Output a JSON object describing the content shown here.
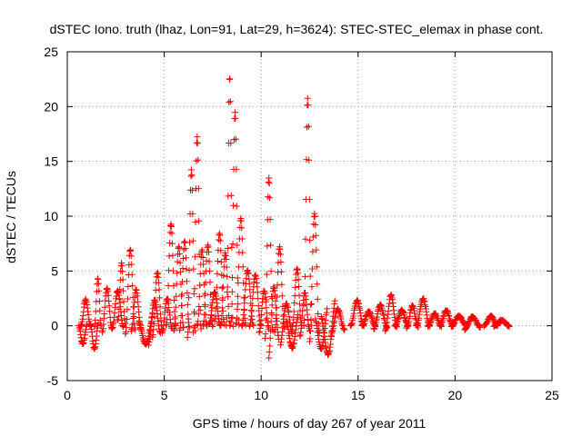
{
  "chart_data": {
    "type": "scatter",
    "title": "dSTEC Iono. truth (lhaz, Lon=91, Lat=29, h=3624): STEC-STEC_elemax in phase cont.",
    "xlabel": "GPS time / hours of day 267 of year 2011",
    "ylabel": "dSTEC  / TECUs",
    "xlim": [
      0,
      25
    ],
    "ylim": [
      -5,
      25
    ],
    "xticks": [
      0,
      5,
      10,
      15,
      20,
      25
    ],
    "yticks": [
      -5,
      0,
      5,
      10,
      15,
      20,
      25
    ],
    "grid": true,
    "marker": "+",
    "marker_color": "#ff0000",
    "series": [
      {
        "name": "dSTEC",
        "arcs": [
          {
            "t0": 0.6,
            "t1": 1.0,
            "min": -1.7,
            "max": 0.0
          },
          {
            "t0": 0.7,
            "t1": 1.2,
            "min": 0.0,
            "max": 2.4
          },
          {
            "t0": 1.2,
            "t1": 1.6,
            "min": -2.1,
            "max": 0.3
          },
          {
            "t0": 1.4,
            "t1": 1.75,
            "min": 0.0,
            "max": 4.3
          },
          {
            "t0": 1.8,
            "t1": 2.3,
            "min": -0.6,
            "max": 3.4
          },
          {
            "t0": 2.3,
            "t1": 2.9,
            "min": -0.3,
            "max": 3.2
          },
          {
            "t0": 2.6,
            "t1": 3.0,
            "min": 0.5,
            "max": 5.7
          },
          {
            "t0": 3.0,
            "t1": 3.5,
            "min": -0.8,
            "max": 7.0
          },
          {
            "t0": 3.3,
            "t1": 3.8,
            "min": -0.5,
            "max": 3.3
          },
          {
            "t0": 3.7,
            "t1": 4.4,
            "min": -1.7,
            "max": 1.0
          },
          {
            "t0": 4.2,
            "t1": 4.8,
            "min": -1.8,
            "max": 2.3
          },
          {
            "t0": 4.4,
            "t1": 4.9,
            "min": -1.0,
            "max": 4.9
          },
          {
            "t0": 4.9,
            "t1": 5.4,
            "min": -0.6,
            "max": 2.5
          },
          {
            "t0": 5.1,
            "t1": 5.6,
            "min": 0.0,
            "max": 9.3
          },
          {
            "t0": 5.5,
            "t1": 6.0,
            "min": -0.5,
            "max": 7.2
          },
          {
            "t0": 5.8,
            "t1": 6.3,
            "min": -0.4,
            "max": 7.7
          },
          {
            "t0": 6.2,
            "t1": 6.6,
            "min": -1.0,
            "max": 14.2
          },
          {
            "t0": 6.5,
            "t1": 6.9,
            "min": -0.6,
            "max": 17.3
          },
          {
            "t0": 6.7,
            "t1": 7.2,
            "min": 0.0,
            "max": 6.9
          },
          {
            "t0": 7.0,
            "t1": 7.5,
            "min": 0.0,
            "max": 7.3
          },
          {
            "t0": 7.3,
            "t1": 7.9,
            "min": 0.2,
            "max": 3.1
          },
          {
            "t0": 7.6,
            "t1": 8.1,
            "min": 0.5,
            "max": 8.5
          },
          {
            "t0": 7.9,
            "t1": 8.4,
            "min": 0.0,
            "max": 6.6
          },
          {
            "t0": 8.2,
            "t1": 8.55,
            "min": 0.0,
            "max": 22.8
          },
          {
            "t0": 8.45,
            "t1": 8.85,
            "min": 0.3,
            "max": 19.5
          },
          {
            "t0": 8.7,
            "t1": 9.2,
            "min": 0.2,
            "max": 9.8
          },
          {
            "t0": 9.0,
            "t1": 9.6,
            "min": 0.0,
            "max": 5.0
          },
          {
            "t0": 9.4,
            "t1": 10.0,
            "min": 0.0,
            "max": 4.6
          },
          {
            "t0": 9.9,
            "t1": 10.4,
            "min": -0.6,
            "max": 3.2
          },
          {
            "t0": 10.2,
            "t1": 10.6,
            "min": -1.2,
            "max": 13.5
          },
          {
            "t0": 10.4,
            "t1": 10.9,
            "min": -2.9,
            "max": 3.5
          },
          {
            "t0": 10.7,
            "t1": 11.2,
            "min": -0.5,
            "max": 7.2
          },
          {
            "t0": 11.0,
            "t1": 11.6,
            "min": -1.7,
            "max": 2.0
          },
          {
            "t0": 11.3,
            "t1": 11.9,
            "min": -2.0,
            "max": 1.0
          },
          {
            "t0": 11.6,
            "t1": 12.1,
            "min": 0.0,
            "max": 5.2
          },
          {
            "t0": 12.0,
            "t1": 12.5,
            "min": -1.0,
            "max": 3.0
          },
          {
            "t0": 12.2,
            "t1": 12.6,
            "min": 0.0,
            "max": 20.8
          },
          {
            "t0": 12.5,
            "t1": 13.0,
            "min": -1.5,
            "max": 10.2
          },
          {
            "t0": 12.8,
            "t1": 13.4,
            "min": -2.1,
            "max": 1.5
          },
          {
            "t0": 13.1,
            "t1": 13.8,
            "min": -2.6,
            "max": 2.3
          },
          {
            "t0": 13.6,
            "t1": 14.3,
            "min": -1.0,
            "max": 1.5
          },
          {
            "t0": 14.6,
            "t1": 15.3,
            "min": 0.0,
            "max": 2.3
          },
          {
            "t0": 15.2,
            "t1": 15.9,
            "min": 0.0,
            "max": 1.3
          },
          {
            "t0": 15.8,
            "t1": 16.5,
            "min": -0.3,
            "max": 1.9
          },
          {
            "t0": 16.4,
            "t1": 17.0,
            "min": -0.4,
            "max": 2.8
          },
          {
            "t0": 16.9,
            "t1": 17.6,
            "min": 0.0,
            "max": 1.4
          },
          {
            "t0": 17.5,
            "t1": 18.1,
            "min": -0.2,
            "max": 1.8
          },
          {
            "t0": 18.0,
            "t1": 18.7,
            "min": 0.0,
            "max": 2.5
          },
          {
            "t0": 18.6,
            "t1": 19.3,
            "min": 0.0,
            "max": 1.1
          },
          {
            "t0": 19.2,
            "t1": 19.9,
            "min": 0.0,
            "max": 1.4
          },
          {
            "t0": 19.8,
            "t1": 20.6,
            "min": 0.0,
            "max": 0.9
          },
          {
            "t0": 20.5,
            "t1": 21.3,
            "min": -0.3,
            "max": 0.8
          },
          {
            "t0": 21.5,
            "t1": 22.2,
            "min": 0.0,
            "max": 0.9
          },
          {
            "t0": 22.0,
            "t1": 22.8,
            "min": 0.0,
            "max": 0.5
          }
        ]
      }
    ]
  }
}
